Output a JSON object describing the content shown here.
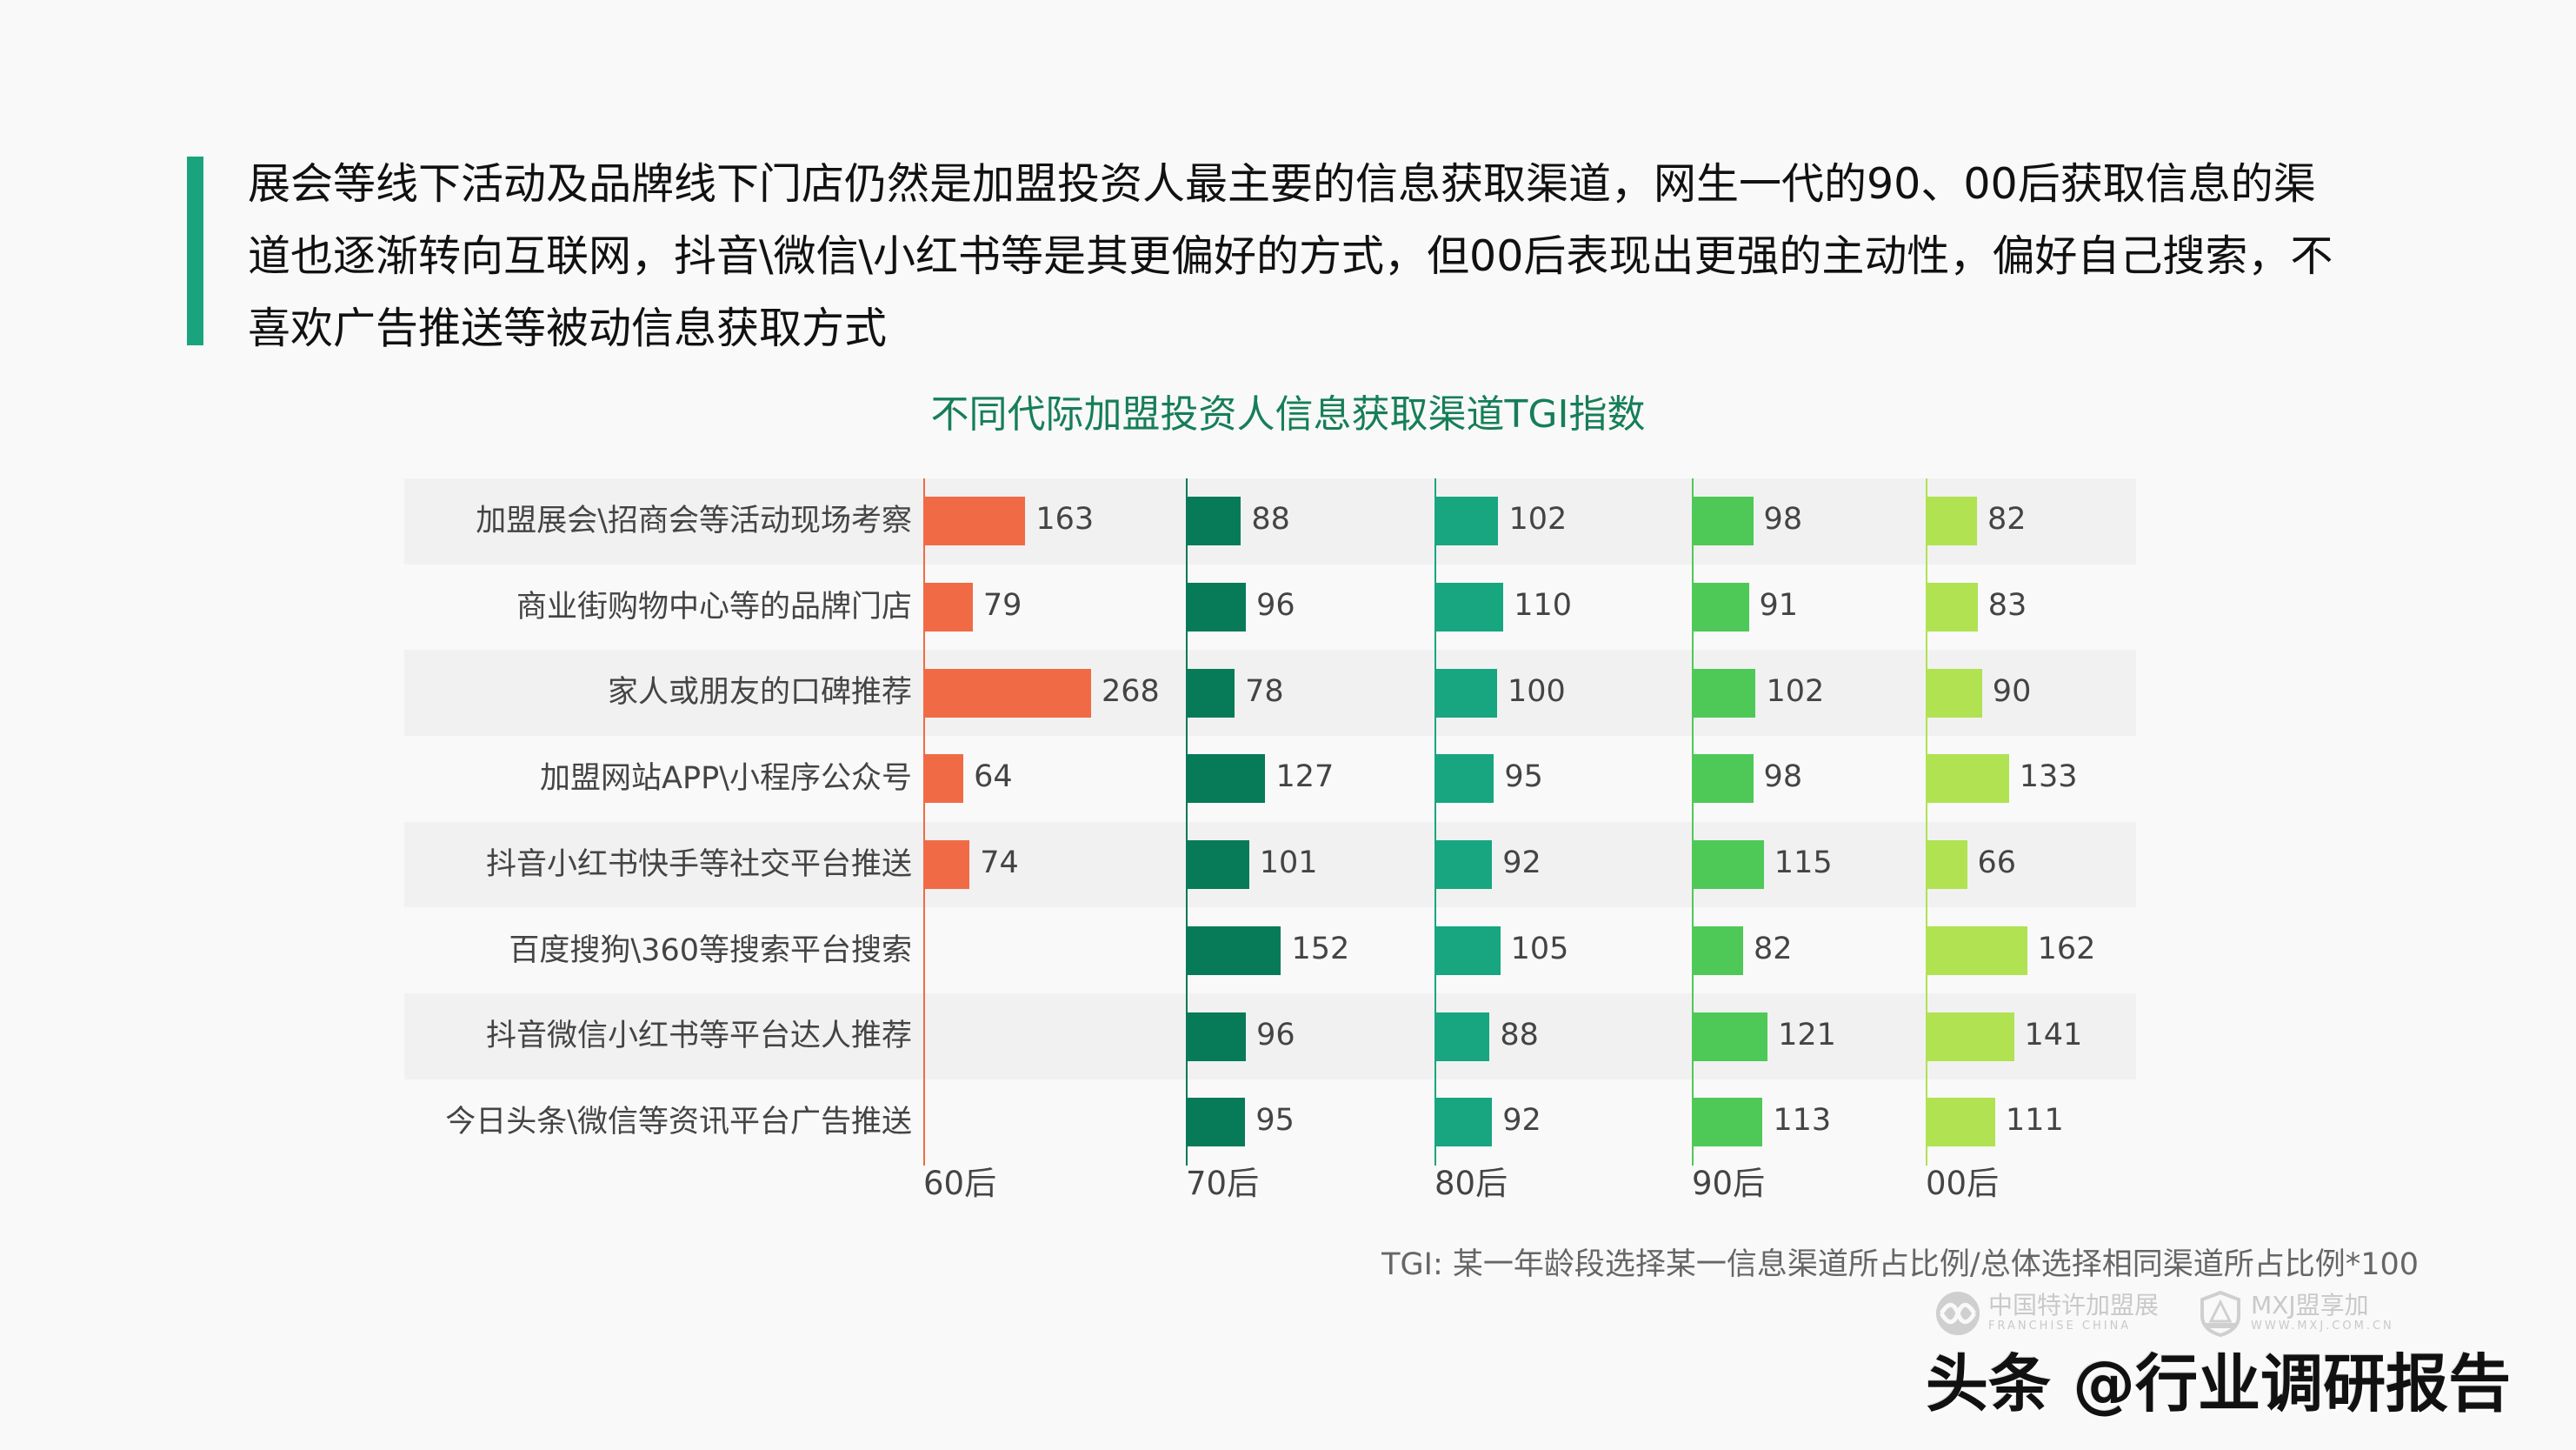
{
  "headline": "展会等线下活动及品牌线下门店仍然是加盟投资人最主要的信息获取渠道，网生一代的90、00后获取信息的渠道也逐渐转向互联网，抖音\\微信\\小红书等是其更偏好的方式，但00后表现出更强的主动性，偏好自己搜索，不喜欢广告推送等被动信息获取方式",
  "headline_lines": [
    "展会等线下活动及品牌线下门店仍然是加盟投资人最主要的信息获取渠道，网生一代的90、00后获取信息的渠",
    "道也逐渐转向互联网，抖音\\微信\\小红书等是其更偏好的方式，但00后表现出更强的主动性，偏好自己搜索，不",
    "喜欢广告推送等被动信息获取方式"
  ],
  "colors": {
    "accent": "#1aa47d",
    "title": "#167e58",
    "gen60": "#f06b45",
    "gen70": "#077a57",
    "gen80": "#17a67f",
    "gen90": "#4ec957",
    "gen00": "#b0e252"
  },
  "chart_data": {
    "type": "bar",
    "orientation": "horizontal",
    "layout": "small-multiples",
    "title": "不同代际加盟投资人信息获取渠道TGI指数",
    "categories": [
      "加盟展会\\招商会等活动现场考察",
      "商业街购物中心等的品牌门店",
      "家人或朋友的口碑推荐",
      "加盟网站APP\\小程序公众号",
      "抖音小红书快手等社交平台推送",
      "百度搜狗\\360等搜索平台搜索",
      "抖音微信小红书等平台达人推荐",
      "今日头条\\微信等资讯平台广告推送"
    ],
    "series": [
      {
        "name": "60后",
        "color": "#f06b45",
        "values": [
          163,
          79,
          268,
          64,
          74,
          null,
          null,
          null
        ]
      },
      {
        "name": "70后",
        "color": "#077a57",
        "values": [
          88,
          96,
          78,
          127,
          101,
          152,
          96,
          95
        ]
      },
      {
        "name": "80后",
        "color": "#17a67f",
        "values": [
          102,
          110,
          100,
          95,
          92,
          105,
          88,
          92
        ]
      },
      {
        "name": "90后",
        "color": "#4ec957",
        "values": [
          98,
          91,
          102,
          98,
          115,
          82,
          121,
          113
        ]
      },
      {
        "name": "00后",
        "color": "#b0e252",
        "values": [
          82,
          83,
          90,
          133,
          66,
          162,
          141,
          111
        ]
      }
    ],
    "xlabel": "",
    "ylabel": "",
    "grid": false,
    "legend": "none (series names shown beneath each column)",
    "footnote": "TGI: 某一年龄段选择某一信息渠道所占比例/总体选择相同渠道所占比例*100"
  },
  "watermarks": {
    "logo1_main": "中国特许加盟展",
    "logo1_sub": "FRANCHISE CHINA",
    "logo2_main": "MXJ盟享加",
    "logo2_sub": "WWW.MXJ.COM.CN",
    "toutiao": "头条 @行业调研报告"
  }
}
